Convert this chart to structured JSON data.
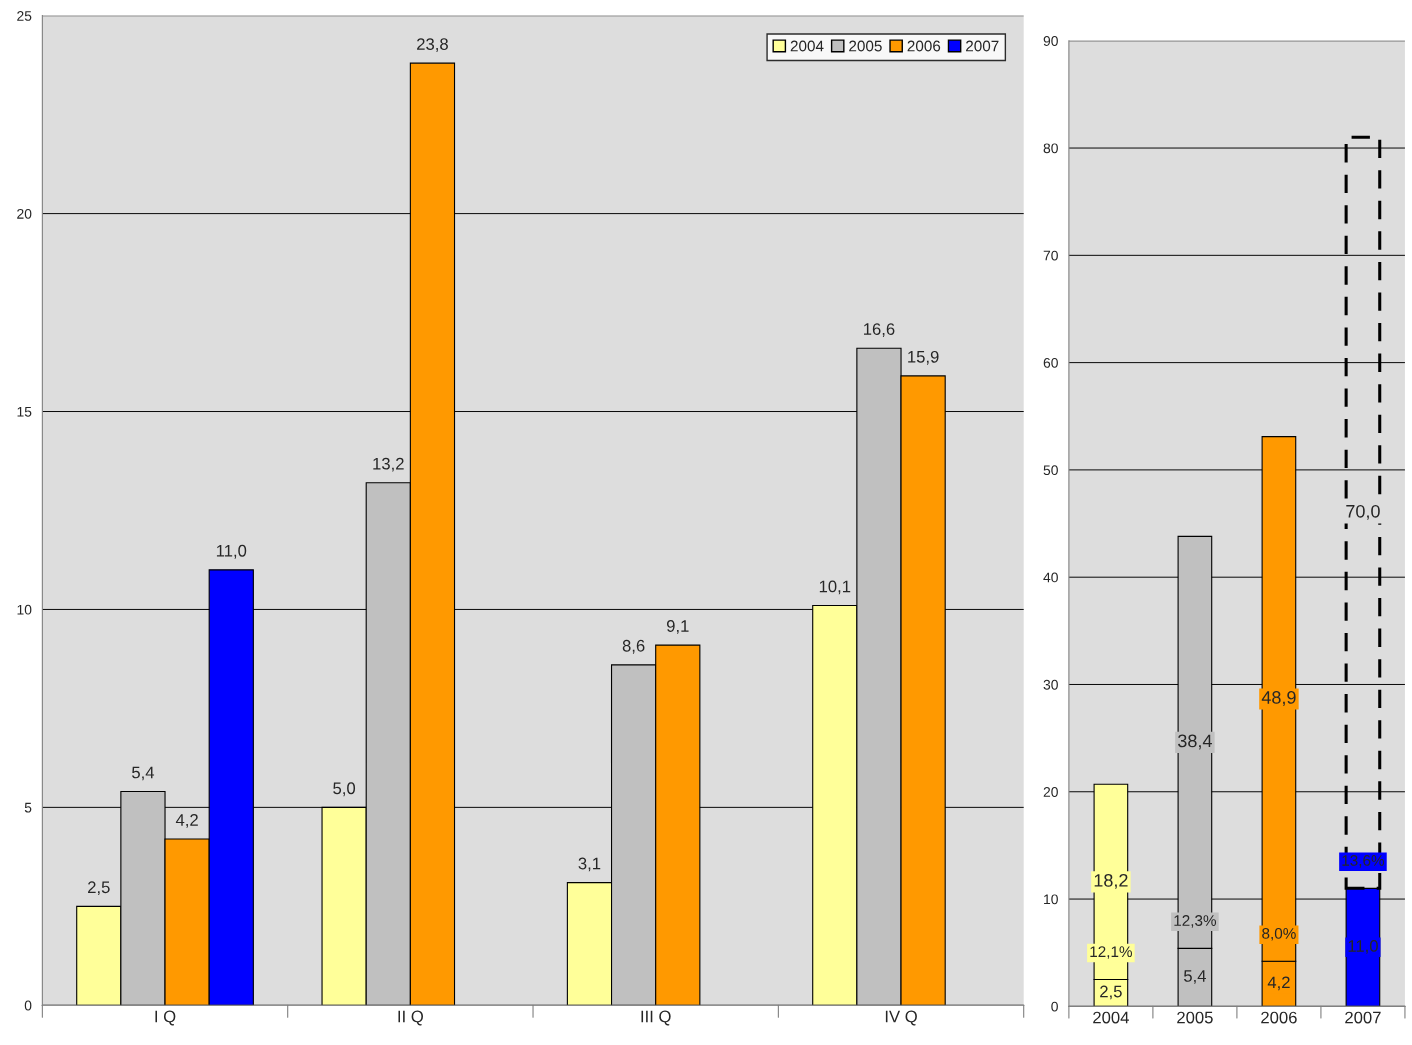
{
  "chart_data": [
    {
      "type": "bar",
      "categories": [
        "I Q",
        "II Q",
        "III Q",
        "IV Q"
      ],
      "ylim": [
        0,
        25
      ],
      "yticks": [
        0,
        5,
        10,
        15,
        20,
        25
      ],
      "grid": "y",
      "legend": "top right",
      "data_labels": true,
      "series": [
        {
          "name": "2004",
          "color": "#ffff99",
          "values": [
            2.5,
            5.0,
            3.1,
            10.1
          ],
          "value_labels": [
            "2,5",
            "5,0",
            "3,1",
            "10,1"
          ]
        },
        {
          "name": "2005",
          "color": "#c0c0c0",
          "values": [
            5.4,
            13.2,
            8.6,
            16.6
          ],
          "value_labels": [
            "5,4",
            "13,2",
            "8,6",
            "16,6"
          ]
        },
        {
          "name": "2006",
          "color": "#ff9900",
          "values": [
            4.2,
            23.8,
            9.1,
            15.9
          ],
          "value_labels": [
            "4,2",
            "23,8",
            "9,1",
            "15,9"
          ]
        },
        {
          "name": "2007",
          "color": "#0000ff",
          "values": [
            11.0,
            null,
            null,
            null
          ],
          "value_labels": [
            "11,0",
            null,
            null,
            null
          ]
        }
      ]
    },
    {
      "type": "bar",
      "stacked": true,
      "categories": [
        "2004",
        "2005",
        "2006",
        "2007"
      ],
      "ylim": [
        0,
        90
      ],
      "yticks": [
        0,
        10,
        20,
        30,
        40,
        50,
        60,
        70,
        80,
        90
      ],
      "grid": "y",
      "data_labels": true,
      "series": [
        {
          "colors": [
            "#ffff99",
            "#c0c0c0",
            "#ff9900",
            "#0000ff"
          ],
          "values": [
            2.5,
            5.4,
            4.2,
            11.0
          ],
          "value_labels": [
            "2,5",
            "5,4",
            "4,2",
            "11,0"
          ]
        },
        {
          "colors": [
            "#ffff99",
            "#c0c0c0",
            "#ff9900",
            "#0000ff"
          ],
          "values": [
            18.2,
            38.4,
            48.9,
            null
          ],
          "value_labels": [
            "18,2",
            "38,4",
            "48,9",
            null
          ]
        },
        {
          "color": "#000000",
          "line_style": "dashed",
          "values": [
            null,
            null,
            null,
            70.0
          ],
          "value_labels": [
            null,
            null,
            null,
            "70,0"
          ]
        }
      ],
      "annotations": [
        "12,1%",
        "12,3%",
        "8,0%",
        "13,6%"
      ]
    }
  ]
}
